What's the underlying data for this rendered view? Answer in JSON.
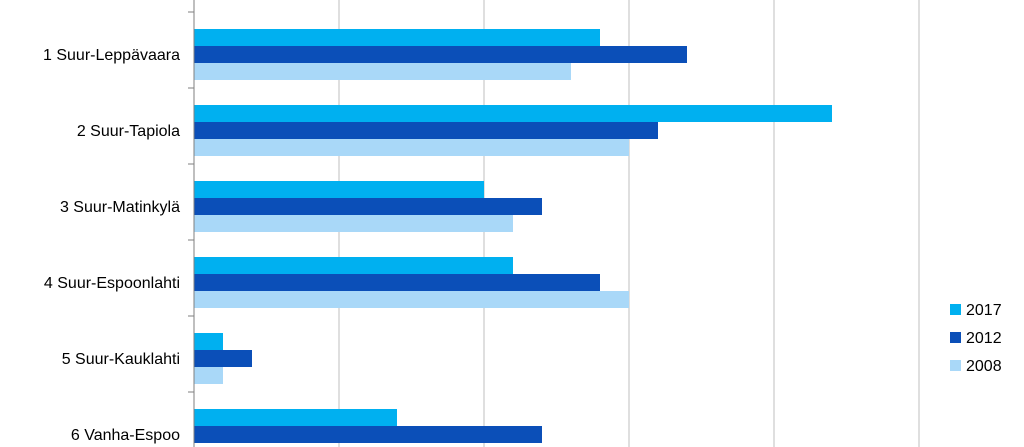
{
  "chart_data": {
    "type": "bar",
    "orientation": "horizontal",
    "title": "",
    "xlabel": "",
    "ylabel": "",
    "categories": [
      "1 Suur-Leppävaara",
      "2 Suur-Tapiola",
      "3 Suur-Matinkylä",
      "4 Suur-Espoonlahti",
      "5 Suur-Kauklahti",
      "6 Vanha-Espoo"
    ],
    "series": [
      {
        "name": "2017",
        "color": "#00B0F0",
        "values": [
          28,
          44,
          20,
          22,
          2,
          14
        ]
      },
      {
        "name": "2012",
        "color": "#0B4FB8",
        "values": [
          34,
          32,
          24,
          28,
          4,
          24
        ]
      },
      {
        "name": "2008",
        "color": "#A9D8F8",
        "values": [
          26,
          30,
          22,
          30,
          2,
          null
        ]
      }
    ],
    "xlim": [
      0,
      50
    ],
    "grid": true,
    "legend_position": "right"
  }
}
